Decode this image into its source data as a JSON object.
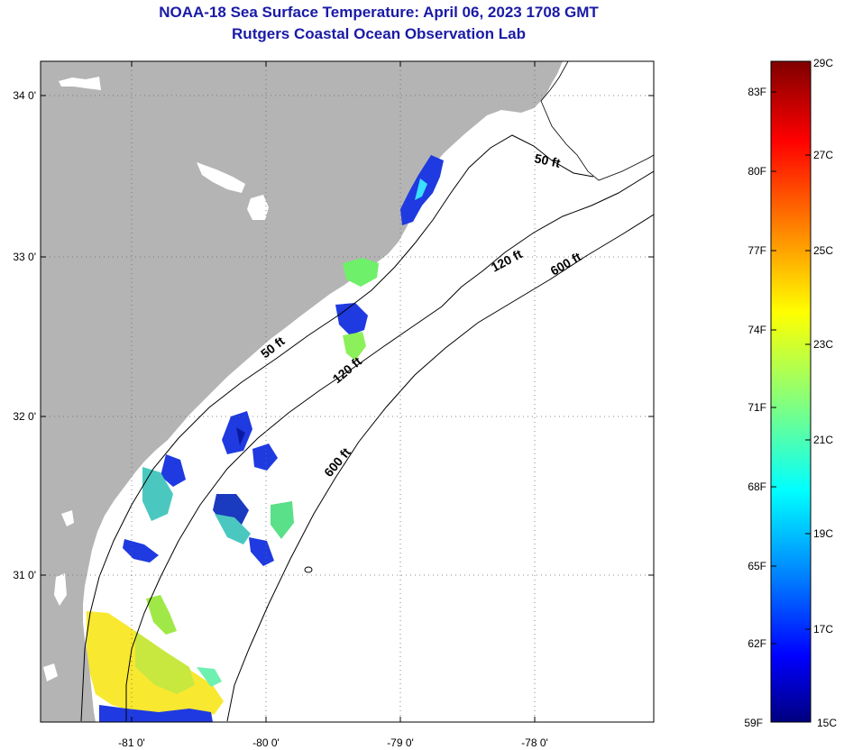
{
  "title": {
    "line1": "NOAA-18 Sea Surface Temperature:  April 06, 2023 1708 GMT",
    "line2": "Rutgers Coastal Ocean Observation Lab"
  },
  "map": {
    "lat_labels": [
      "34 0'",
      "33 0'",
      "32 0'",
      "31 0'"
    ],
    "lon_labels": [
      "-81 0'",
      "-80 0'",
      "-79 0'",
      "-78 0'"
    ],
    "isobath_labels": [
      {
        "text": "50 ft"
      },
      {
        "text": "120 ft"
      },
      {
        "text": "600 ft"
      },
      {
        "text": "50 ft"
      },
      {
        "text": "120 ft"
      },
      {
        "text": "600 ft"
      }
    ],
    "colors": {
      "land": "#b4b4b4",
      "ocean": "#ffffff",
      "title": "#1a1aa6"
    }
  },
  "colorbar": {
    "fahrenheit": [
      "83F",
      "80F",
      "77F",
      "74F",
      "71F",
      "68F",
      "65F",
      "62F",
      "59F"
    ],
    "celsius": [
      "29C",
      "27C",
      "25C",
      "23C",
      "21C",
      "19C",
      "17C",
      "15C"
    ],
    "stops": [
      "#7f0000",
      "#ff0000",
      "#ff8000",
      "#ffff00",
      "#80ff80",
      "#00ffff",
      "#0080ff",
      "#0000ff",
      "#00007f"
    ]
  }
}
